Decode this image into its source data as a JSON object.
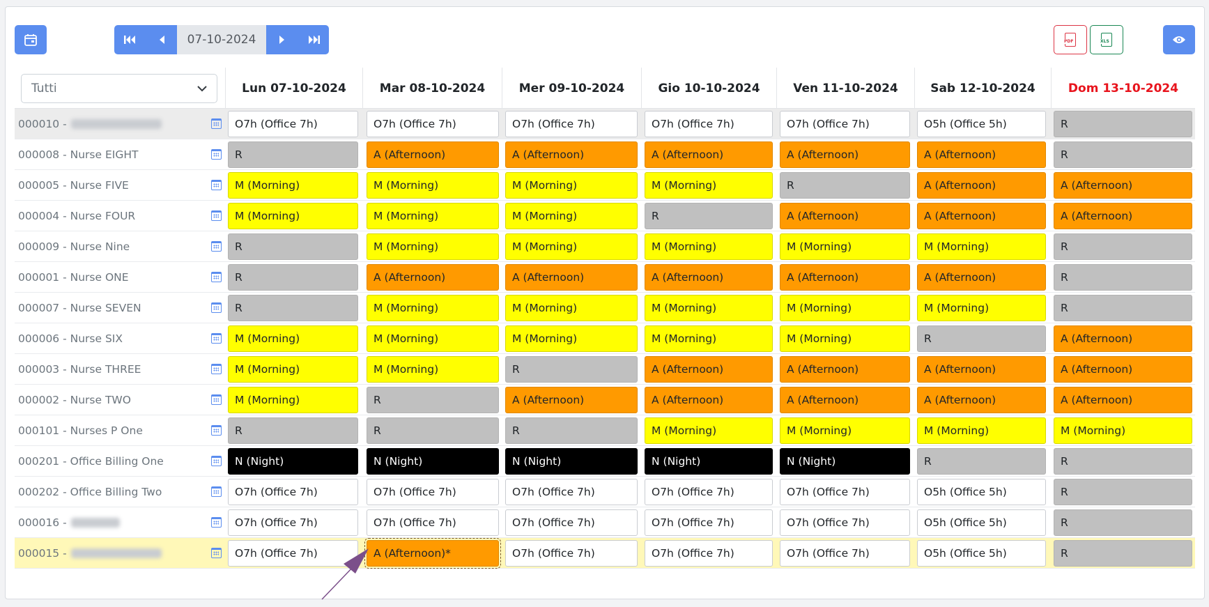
{
  "toolbar": {
    "date": "07-10-2024",
    "pdf_label": "PDF",
    "xls_label": "XLS",
    "icons": [
      "calendar-icon",
      "first-page-icon",
      "prev-icon",
      "next-icon",
      "last-page-icon",
      "pdf-icon",
      "xls-icon",
      "eye-icon"
    ]
  },
  "filter": {
    "value": "Tutti"
  },
  "days": [
    {
      "label": "Lun 07-10-2024",
      "holiday": false
    },
    {
      "label": "Mar 08-10-2024",
      "holiday": false
    },
    {
      "label": "Mer 09-10-2024",
      "holiday": false
    },
    {
      "label": "Gio 10-10-2024",
      "holiday": false
    },
    {
      "label": "Ven 11-10-2024",
      "holiday": false
    },
    {
      "label": "Sab 12-10-2024",
      "holiday": false
    },
    {
      "label": "Dom 13-10-2024",
      "holiday": true
    }
  ],
  "legend_colors": {
    "O": "#ffffff",
    "R": "#c0c0c0",
    "A": "#ff9a00",
    "M": "#ffff00",
    "N": "#000000",
    "holiday_text": "#e8141d",
    "highlight_row": "#fff8b8",
    "accent": "#5b8def"
  },
  "rows": [
    {
      "code": "000010 -",
      "name": "",
      "masked": true,
      "highlight": "gray",
      "shifts": [
        "O7h (Office 7h)",
        "O7h (Office 7h)",
        "O7h (Office 7h)",
        "O7h (Office 7h)",
        "O7h (Office 7h)",
        "O5h (Office 5h)",
        "R"
      ]
    },
    {
      "code": "000008 -",
      "name": "Nurse EIGHT",
      "masked": false,
      "shifts": [
        "R",
        "A (Afternoon)",
        "A (Afternoon)",
        "A (Afternoon)",
        "A (Afternoon)",
        "A (Afternoon)",
        "R"
      ]
    },
    {
      "code": "000005 -",
      "name": "Nurse FIVE",
      "masked": false,
      "shifts": [
        "M (Morning)",
        "M (Morning)",
        "M (Morning)",
        "M (Morning)",
        "R",
        "A (Afternoon)",
        "A (Afternoon)"
      ]
    },
    {
      "code": "000004 -",
      "name": "Nurse FOUR",
      "masked": false,
      "shifts": [
        "M (Morning)",
        "M (Morning)",
        "M (Morning)",
        "R",
        "A (Afternoon)",
        "A (Afternoon)",
        "A (Afternoon)"
      ]
    },
    {
      "code": "000009 -",
      "name": "Nurse Nine",
      "masked": false,
      "shifts": [
        "R",
        "M (Morning)",
        "M (Morning)",
        "M (Morning)",
        "M (Morning)",
        "M (Morning)",
        "R"
      ]
    },
    {
      "code": "000001 -",
      "name": "Nurse ONE",
      "masked": false,
      "shifts": [
        "R",
        "A (Afternoon)",
        "A (Afternoon)",
        "A (Afternoon)",
        "A (Afternoon)",
        "A (Afternoon)",
        "R"
      ]
    },
    {
      "code": "000007 -",
      "name": "Nurse SEVEN",
      "masked": false,
      "shifts": [
        "R",
        "M (Morning)",
        "M (Morning)",
        "M (Morning)",
        "M (Morning)",
        "M (Morning)",
        "R"
      ]
    },
    {
      "code": "000006 -",
      "name": "Nurse SIX",
      "masked": false,
      "shifts": [
        "M (Morning)",
        "M (Morning)",
        "M (Morning)",
        "M (Morning)",
        "M (Morning)",
        "R",
        "A (Afternoon)"
      ]
    },
    {
      "code": "000003 -",
      "name": "Nurse THREE",
      "masked": false,
      "shifts": [
        "M (Morning)",
        "M (Morning)",
        "R",
        "A (Afternoon)",
        "A (Afternoon)",
        "A (Afternoon)",
        "A (Afternoon)"
      ]
    },
    {
      "code": "000002 -",
      "name": "Nurse TWO",
      "masked": false,
      "shifts": [
        "M (Morning)",
        "R",
        "A (Afternoon)",
        "A (Afternoon)",
        "A (Afternoon)",
        "A (Afternoon)",
        "A (Afternoon)"
      ]
    },
    {
      "code": "000101 -",
      "name": "Nurses P One",
      "masked": false,
      "shifts": [
        "R",
        "R",
        "R",
        "M (Morning)",
        "M (Morning)",
        "M (Morning)",
        "M (Morning)"
      ]
    },
    {
      "code": "000201 -",
      "name": "Office Billing One",
      "masked": false,
      "shifts": [
        "N (Night)",
        "N (Night)",
        "N (Night)",
        "N (Night)",
        "N (Night)",
        "R",
        "R"
      ]
    },
    {
      "code": "000202 -",
      "name": "Office Billing Two",
      "masked": false,
      "shifts": [
        "O7h (Office 7h)",
        "O7h (Office 7h)",
        "O7h (Office 7h)",
        "O7h (Office 7h)",
        "O7h (Office 7h)",
        "O5h (Office 5h)",
        "R"
      ]
    },
    {
      "code": "000016 -",
      "name": "",
      "masked": true,
      "shifts": [
        "O7h (Office 7h)",
        "O7h (Office 7h)",
        "O7h (Office 7h)",
        "O7h (Office 7h)",
        "O7h (Office 7h)",
        "O5h (Office 5h)",
        "R"
      ]
    },
    {
      "code": "000015 -",
      "name": "",
      "masked": true,
      "highlight": "yellow",
      "selected_day": 1,
      "shifts": [
        "O7h (Office 7h)",
        "A (Afternoon)*",
        "O7h (Office 7h)",
        "O7h (Office 7h)",
        "O7h (Office 7h)",
        "O5h (Office 5h)",
        "R"
      ]
    }
  ]
}
